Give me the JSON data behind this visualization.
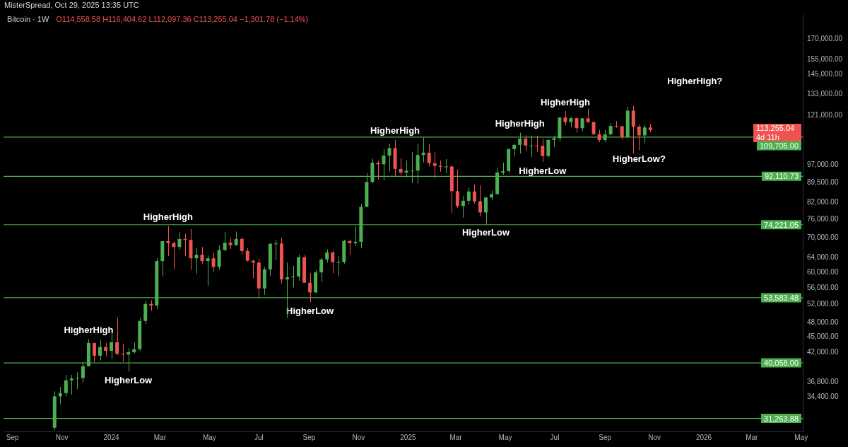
{
  "chart_data": {
    "type": "candlestick",
    "title": "Bitcoin · 1W",
    "subtitle": "O114,558.58 H116,404.62 L112,097.36 C113,255.04 −1,301.78 (−1.14%)",
    "x": [
      "2023-10-23",
      "2023-10-30",
      "2023-11-06",
      "2023-11-13",
      "2023-11-20",
      "2023-11-27",
      "2023-12-04",
      "2023-12-11",
      "2023-12-18",
      "2023-12-25",
      "2024-01-01",
      "2024-01-08",
      "2024-01-15",
      "2024-01-22",
      "2024-01-29",
      "2024-02-05",
      "2024-02-12",
      "2024-02-19",
      "2024-02-26",
      "2024-03-04",
      "2024-03-11",
      "2024-03-18",
      "2024-03-25",
      "2024-04-01",
      "2024-04-08",
      "2024-04-15",
      "2024-04-22",
      "2024-04-29",
      "2024-05-06",
      "2024-05-13",
      "2024-05-20",
      "2024-05-27",
      "2024-06-03",
      "2024-06-10",
      "2024-06-17",
      "2024-06-24",
      "2024-07-01",
      "2024-07-08",
      "2024-07-15",
      "2024-07-22",
      "2024-07-29",
      "2024-08-05",
      "2024-08-12",
      "2024-08-19",
      "2024-08-26",
      "2024-09-02",
      "2024-09-09",
      "2024-09-16",
      "2024-09-23",
      "2024-09-30",
      "2024-10-07",
      "2024-10-14",
      "2024-10-21",
      "2024-10-28",
      "2024-11-04",
      "2024-11-11",
      "2024-11-18",
      "2024-11-25",
      "2024-12-02",
      "2024-12-09",
      "2024-12-16",
      "2024-12-23",
      "2024-12-30",
      "2025-01-06",
      "2025-01-13",
      "2025-01-20",
      "2025-01-27",
      "2025-02-03",
      "2025-02-10",
      "2025-02-17",
      "2025-02-24",
      "2025-03-03",
      "2025-03-10",
      "2025-03-17",
      "2025-03-24",
      "2025-03-31",
      "2025-04-07",
      "2025-04-14",
      "2025-04-21",
      "2025-04-28",
      "2025-05-05",
      "2025-05-12",
      "2025-05-19",
      "2025-05-26",
      "2025-06-02",
      "2025-06-09",
      "2025-06-16",
      "2025-06-23",
      "2025-06-30",
      "2025-07-07",
      "2025-07-14",
      "2025-07-21",
      "2025-07-28",
      "2025-08-04",
      "2025-08-11",
      "2025-08-18",
      "2025-08-25",
      "2025-09-01",
      "2025-09-08",
      "2025-09-15",
      "2025-09-22",
      "2025-09-29",
      "2025-10-06",
      "2025-10-13",
      "2025-10-20",
      "2025-10-27"
    ],
    "ohlc": [
      [
        29990,
        35280,
        29660,
        34500
      ],
      [
        34500,
        35980,
        33390,
        35010
      ],
      [
        35010,
        37970,
        34520,
        37060
      ],
      [
        37060,
        37980,
        34800,
        37360
      ],
      [
        37360,
        38420,
        35630,
        37450
      ],
      [
        37450,
        40250,
        36700,
        39460
      ],
      [
        39460,
        44490,
        39460,
        43790
      ],
      [
        43790,
        43800,
        40200,
        41360
      ],
      [
        41360,
        44400,
        40500,
        43000
      ],
      [
        43000,
        43800,
        41300,
        42280
      ],
      [
        42280,
        45880,
        40750,
        43930
      ],
      [
        43930,
        49000,
        41500,
        41730
      ],
      [
        41730,
        43570,
        40280,
        41580
      ],
      [
        41580,
        42800,
        38550,
        42030
      ],
      [
        42030,
        43880,
        41800,
        42580
      ],
      [
        42580,
        48970,
        42260,
        48300
      ],
      [
        48300,
        52820,
        47700,
        52130
      ],
      [
        52130,
        52980,
        50520,
        51730
      ],
      [
        51730,
        64000,
        50900,
        63110
      ],
      [
        63110,
        69000,
        59000,
        68960
      ],
      [
        68960,
        73780,
        64500,
        68390
      ],
      [
        68390,
        68920,
        60770,
        67210
      ],
      [
        67210,
        71770,
        66400,
        69650
      ],
      [
        69650,
        71300,
        64500,
        69360
      ],
      [
        69360,
        72800,
        60660,
        63900
      ],
      [
        63900,
        66900,
        59600,
        64930
      ],
      [
        64930,
        67230,
        62400,
        63110
      ],
      [
        63110,
        64700,
        56550,
        63890
      ],
      [
        63890,
        65500,
        60200,
        61480
      ],
      [
        61480,
        67700,
        60700,
        66270
      ],
      [
        66270,
        71950,
        66000,
        68500
      ],
      [
        68500,
        70000,
        66600,
        67760
      ],
      [
        67760,
        71990,
        67600,
        69650
      ],
      [
        69650,
        70200,
        65000,
        66020
      ],
      [
        66020,
        66900,
        63000,
        63210
      ],
      [
        63210,
        63500,
        58400,
        62680
      ],
      [
        62680,
        63800,
        53500,
        55860
      ],
      [
        55860,
        61400,
        54300,
        60800
      ],
      [
        60800,
        68400,
        59000,
        68160
      ],
      [
        68160,
        69400,
        63400,
        68250
      ],
      [
        68250,
        70080,
        57100,
        58160
      ],
      [
        58160,
        62700,
        49000,
        58700
      ],
      [
        58700,
        61800,
        56100,
        58900
      ],
      [
        58900,
        65000,
        57800,
        64200
      ],
      [
        64200,
        64900,
        57200,
        57300
      ],
      [
        57300,
        59800,
        52550,
        54870
      ],
      [
        54870,
        60600,
        54600,
        60000
      ],
      [
        60000,
        64100,
        57500,
        63580
      ],
      [
        63580,
        66500,
        62700,
        65600
      ],
      [
        65600,
        66000,
        59800,
        62820
      ],
      [
        62820,
        64500,
        58900,
        62850
      ],
      [
        62850,
        69400,
        62400,
        69030
      ],
      [
        69030,
        69500,
        65000,
        68360
      ],
      [
        68360,
        73600,
        67500,
        68770
      ],
      [
        68770,
        81500,
        66800,
        80370
      ],
      [
        80370,
        93500,
        80200,
        89850
      ],
      [
        89850,
        99600,
        89400,
        97900
      ],
      [
        97900,
        98700,
        90800,
        97200
      ],
      [
        97200,
        104000,
        90500,
        101100
      ],
      [
        101100,
        106500,
        94150,
        104500
      ],
      [
        104500,
        108350,
        92100,
        95200
      ],
      [
        95200,
        99960,
        92500,
        93700
      ],
      [
        93700,
        98900,
        91500,
        94500
      ],
      [
        94500,
        102700,
        89300,
        94500
      ],
      [
        94500,
        106400,
        89200,
        101300
      ],
      [
        101300,
        109600,
        98000,
        102400
      ],
      [
        102400,
        106400,
        96200,
        97700
      ],
      [
        97700,
        102500,
        91200,
        96500
      ],
      [
        96500,
        98800,
        94000,
        96100
      ],
      [
        96100,
        99500,
        93400,
        96250
      ],
      [
        96250,
        96500,
        78200,
        86200
      ],
      [
        86200,
        95000,
        80000,
        80700
      ],
      [
        80700,
        84300,
        76600,
        82600
      ],
      [
        82600,
        87500,
        81200,
        86100
      ],
      [
        86100,
        88800,
        81600,
        82400
      ],
      [
        82400,
        88500,
        77000,
        78400
      ],
      [
        78400,
        84000,
        74500,
        83800
      ],
      [
        83800,
        86500,
        83100,
        85100
      ],
      [
        85100,
        95700,
        85000,
        93700
      ],
      [
        93700,
        97900,
        92800,
        94300
      ],
      [
        94300,
        104400,
        93400,
        104000
      ],
      [
        104000,
        106600,
        100700,
        106000
      ],
      [
        106000,
        111900,
        102000,
        109000
      ],
      [
        109000,
        110700,
        103000,
        105700
      ],
      [
        105700,
        110500,
        100400,
        105700
      ],
      [
        105700,
        110400,
        102700,
        105600
      ],
      [
        105600,
        108900,
        98200,
        100900
      ],
      [
        100900,
        108500,
        100300,
        108400
      ],
      [
        108400,
        110500,
        105000,
        109200
      ],
      [
        109200,
        119900,
        107500,
        119800
      ],
      [
        119800,
        123200,
        115700,
        117300
      ],
      [
        117300,
        120200,
        114700,
        119400
      ],
      [
        119400,
        119800,
        112000,
        114200
      ],
      [
        114200,
        119500,
        112600,
        119300
      ],
      [
        119300,
        124500,
        116800,
        117400
      ],
      [
        117400,
        117600,
        110700,
        111200
      ],
      [
        111200,
        113400,
        107300,
        108300
      ],
      [
        108300,
        113400,
        107300,
        111100
      ],
      [
        111100,
        116700,
        110600,
        115300
      ],
      [
        115300,
        117900,
        114400,
        115200
      ],
      [
        115200,
        115400,
        108600,
        109700
      ],
      [
        109700,
        125700,
        109500,
        123500
      ],
      [
        123500,
        126200,
        102000,
        115000
      ],
      [
        115000,
        115900,
        103500,
        110600
      ],
      [
        110600,
        116000,
        106700,
        114558.58
      ],
      [
        114558.58,
        116404.62,
        112097.36,
        113255.04
      ]
    ],
    "colors": [
      "#4caf50",
      "#4caf50",
      "#4caf50",
      "#4caf50",
      "#4caf50",
      "#4caf50",
      "#4caf50",
      "#ef5350",
      "#4caf50",
      "#ef5350",
      "#4caf50",
      "#ef5350",
      "#ef5350",
      "#4caf50",
      "#4caf50",
      "#4caf50",
      "#4caf50",
      "#ef5350",
      "#4caf50",
      "#4caf50",
      "#ef5350",
      "#ef5350",
      "#4caf50",
      "#ef5350",
      "#ef5350",
      "#4caf50",
      "#ef5350",
      "#4caf50",
      "#ef5350",
      "#4caf50",
      "#4caf50",
      "#ef5350",
      "#4caf50",
      "#ef5350",
      "#ef5350",
      "#ef5350",
      "#ef5350",
      "#4caf50",
      "#4caf50",
      "#4caf50",
      "#ef5350",
      "#4caf50",
      "#4caf50",
      "#4caf50",
      "#ef5350",
      "#ef5350",
      "#4caf50",
      "#4caf50",
      "#4caf50",
      "#ef5350",
      "#4caf50",
      "#4caf50",
      "#ef5350",
      "#4caf50",
      "#4caf50",
      "#4caf50",
      "#4caf50",
      "#ef5350",
      "#4caf50",
      "#4caf50",
      "#ef5350",
      "#ef5350",
      "#4caf50",
      "#4caf50",
      "#4caf50",
      "#4caf50",
      "#ef5350",
      "#ef5350",
      "#ef5350",
      "#4caf50",
      "#ef5350",
      "#ef5350",
      "#4caf50",
      "#4caf50",
      "#ef5350",
      "#ef5350",
      "#4caf50",
      "#4caf50",
      "#4caf50",
      "#4caf50",
      "#4caf50",
      "#4caf50",
      "#4caf50",
      "#ef5350",
      "#4caf50",
      "#ef5350",
      "#ef5350",
      "#4caf50",
      "#4caf50",
      "#4caf50",
      "#ef5350",
      "#4caf50",
      "#ef5350",
      "#4caf50",
      "#ef5350",
      "#ef5350",
      "#ef5350",
      "#4caf50",
      "#4caf50",
      "#ef5350",
      "#ef5350",
      "#4caf50",
      "#ef5350",
      "#ef5350",
      "#4caf50",
      "#ef5350"
    ],
    "log": true,
    "grid": false,
    "xlim": [
      "2023-08-21",
      "2026-05-03"
    ],
    "xticks": [
      {
        "value": "2023-09-01",
        "label": "Sep"
      },
      {
        "value": "2023-11-01",
        "label": "Nov"
      },
      {
        "value": "2024-01-01",
        "label": "2024"
      },
      {
        "value": "2024-03-01",
        "label": "Mar"
      },
      {
        "value": "2024-05-01",
        "label": "May"
      },
      {
        "value": "2024-07-01",
        "label": "Jul"
      },
      {
        "value": "2024-09-01",
        "label": "Sep"
      },
      {
        "value": "2024-11-01",
        "label": "Nov"
      },
      {
        "value": "2025-01-01",
        "label": "2025"
      },
      {
        "value": "2025-03-01",
        "label": "Mar"
      },
      {
        "value": "2025-05-01",
        "label": "May"
      },
      {
        "value": "2025-07-01",
        "label": "Jul"
      },
      {
        "value": "2025-09-01",
        "label": "Sep"
      },
      {
        "value": "2025-11-01",
        "label": "Nov"
      },
      {
        "value": "2026-01-01",
        "label": "2026"
      },
      {
        "value": "2026-03-01",
        "label": "Mar"
      },
      {
        "value": "2026-05-01",
        "label": "May"
      }
    ],
    "ylim": [
      29500,
      190000
    ],
    "yticks": [
      {
        "value": 170000,
        "label": "170,000.00"
      },
      {
        "value": 155000,
        "label": "155,000.00"
      },
      {
        "value": 145000,
        "label": "145,000.00"
      },
      {
        "value": 133000,
        "label": "133,000.00"
      },
      {
        "value": 121000,
        "label": "121,000.00"
      },
      {
        "value": 97000,
        "label": "97,000.00"
      },
      {
        "value": 89500,
        "label": "89,500.00"
      },
      {
        "value": 82000,
        "label": "82,000.00"
      },
      {
        "value": 76000,
        "label": "76,000.00"
      },
      {
        "value": 70000,
        "label": "70,000.00"
      },
      {
        "value": 64000,
        "label": "64,000.00"
      },
      {
        "value": 60000,
        "label": "60,000.00"
      },
      {
        "value": 56000,
        "label": "56,000.00"
      },
      {
        "value": 52000,
        "label": "52,000.00"
      },
      {
        "value": 48000,
        "label": "48,000.00"
      },
      {
        "value": 45000,
        "label": "45,000.00"
      },
      {
        "value": 42000,
        "label": "42,000.00"
      },
      {
        "value": 36800,
        "label": "36,800.00"
      },
      {
        "value": 34400,
        "label": "34,400.00"
      }
    ],
    "ref_lines": [
      {
        "axis": "y",
        "value": 109705,
        "label": "109,705.00",
        "color": "#4caf50"
      },
      {
        "axis": "y",
        "value": 92110.73,
        "label": "92,110.73",
        "color": "#4caf50"
      },
      {
        "axis": "y",
        "value": 74221.05,
        "label": "74,221.05",
        "color": "#4caf50"
      },
      {
        "axis": "y",
        "value": 53583.48,
        "label": "53,583.48",
        "color": "#4caf50"
      },
      {
        "axis": "y",
        "value": 40058,
        "label": "40,058.00",
        "color": "#4caf50"
      },
      {
        "axis": "y",
        "value": 31263.88,
        "label": "31,263.88",
        "color": "#4caf50"
      }
    ],
    "annotations": [
      "MisterSpread, Oct 29, 2025 13:35 UTC",
      "113,255.04",
      "4d 11h",
      "HigherHigh?",
      {
        "text": "HigherHigh",
        "x": "2023-12-04",
        "y": 44490
      },
      {
        "text": "HigherLow",
        "x": "2024-01-22",
        "y": 38550
      },
      {
        "text": "HigherHigh",
        "x": "2024-03-11",
        "y": 73780
      },
      {
        "text": "HigherLow",
        "x": "2024-09-02",
        "y": 52550
      },
      {
        "text": "HigherHigh",
        "x": "2024-12-16",
        "y": 108350
      },
      {
        "text": "HigherLow",
        "x": "2025-04-07",
        "y": 74500
      },
      {
        "text": "HigherHigh",
        "x": "2025-05-19",
        "y": 111900
      },
      {
        "text": "HigherLow",
        "x": "2025-06-16",
        "y": 98200
      },
      {
        "text": "HigherHigh",
        "x": "2025-07-14",
        "y": 123200
      },
      {
        "text": "HigherLow?",
        "x": "2025-10-13",
        "y": 103500
      }
    ]
  }
}
